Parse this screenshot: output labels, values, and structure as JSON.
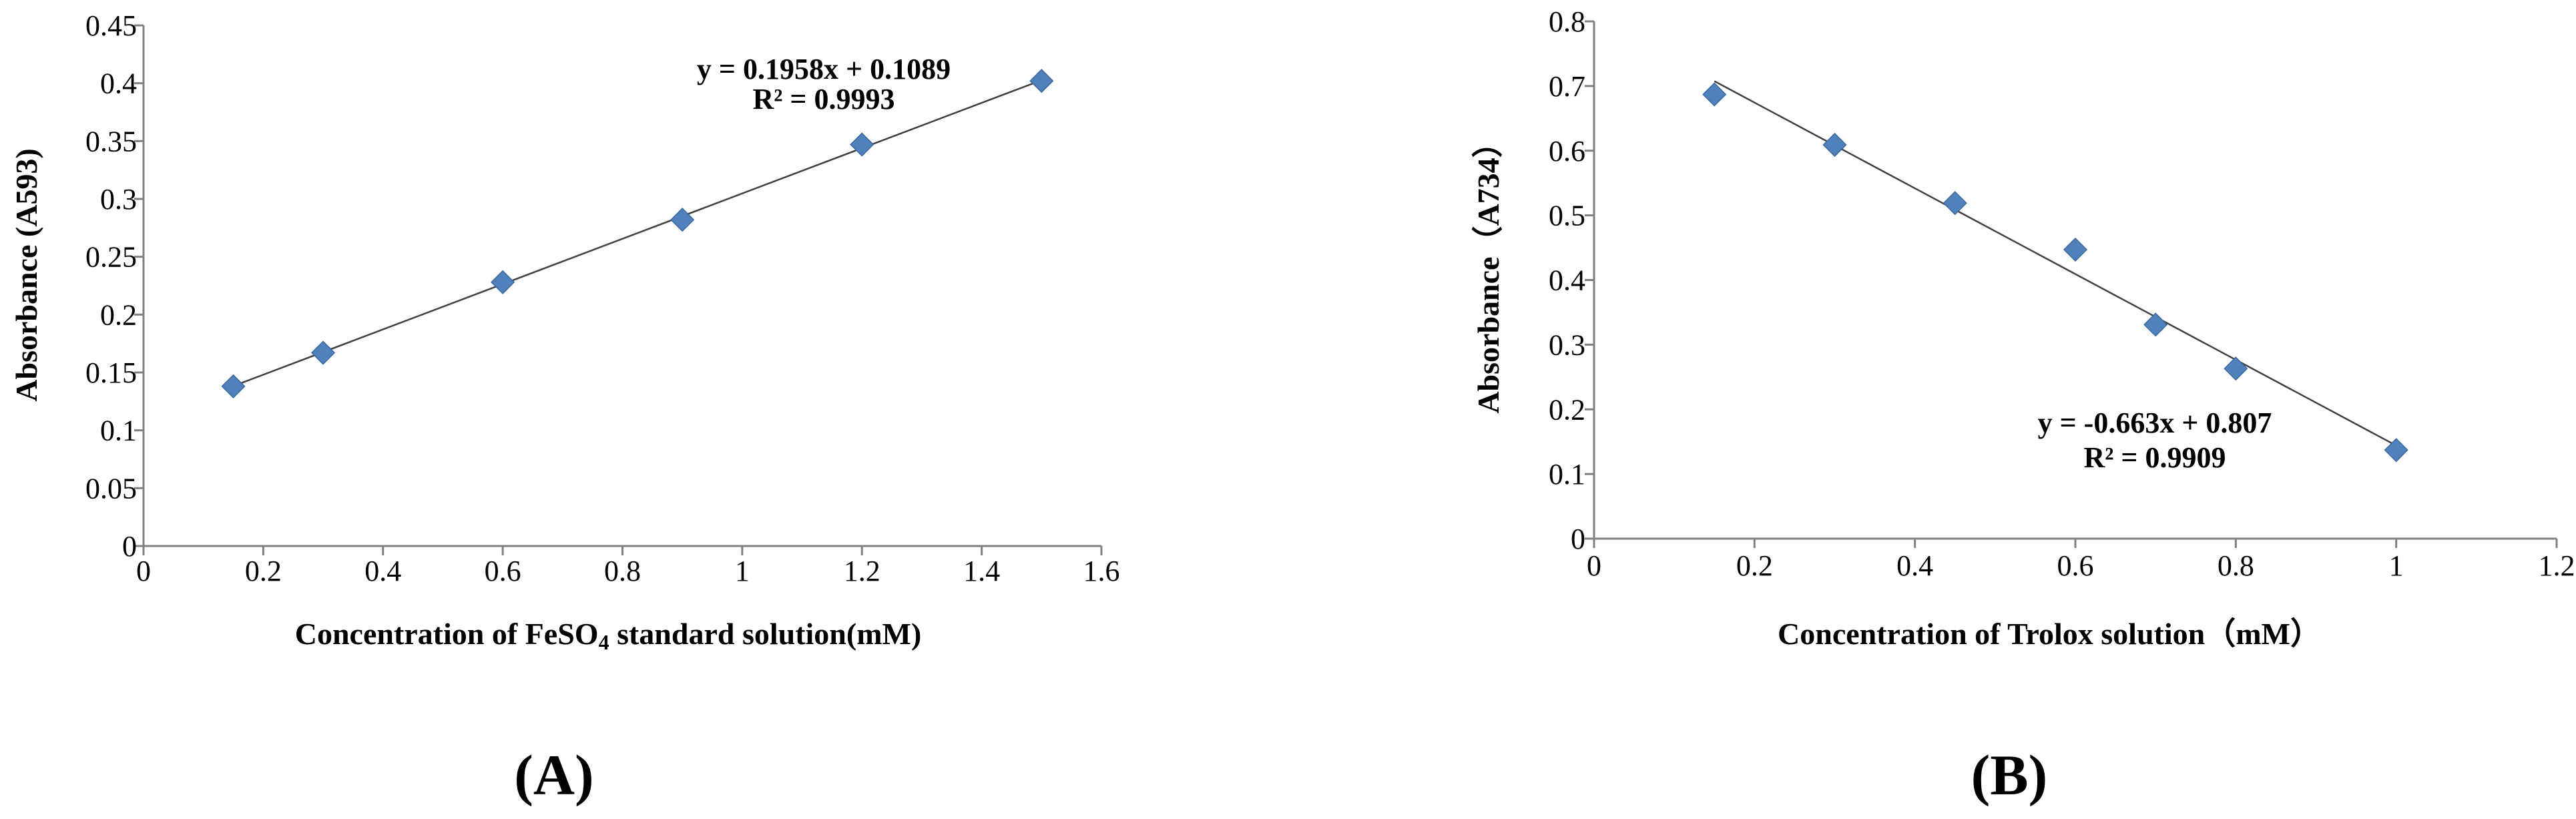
{
  "colors": {
    "marker": "#4F81BD",
    "marker_stroke": "#3A679E",
    "trendline": "#404040",
    "axis": "#808080"
  },
  "chart_data": [
    {
      "type": "scatter",
      "panel_label": "(A)",
      "xlabel_main": "Concentration of FeSO",
      "xlabel_sub": "4",
      "xlabel_tail": " standard solution(mM)",
      "ylabel": "Absorbance (A593)",
      "xlim": [
        0,
        1.6
      ],
      "ylim": [
        0,
        0.45
      ],
      "x_ticks": [
        0,
        0.2,
        0.4,
        0.6,
        0.8,
        1,
        1.2,
        1.4,
        1.6
      ],
      "x_tick_labels": [
        "0",
        "0.2",
        "0.4",
        "0.6",
        "0.8",
        "1",
        "1.2",
        "1.4",
        "1.6"
      ],
      "y_ticks": [
        0,
        0.05,
        0.1,
        0.15,
        0.2,
        0.25,
        0.3,
        0.35,
        0.4,
        0.45
      ],
      "y_tick_labels": [
        "0",
        "0.05",
        "0.1",
        "0.15",
        "0.2",
        "0.25",
        "0.3",
        "0.35",
        "0.4",
        "0.45"
      ],
      "grid": false,
      "x": [
        0.15,
        0.3,
        0.6,
        0.9,
        1.2,
        1.5
      ],
      "y": [
        0.138,
        0.167,
        0.228,
        0.282,
        0.347,
        0.402
      ],
      "trendline": {
        "slope": 0.1958,
        "intercept": 0.1089,
        "x_range": [
          0.15,
          1.5
        ]
      },
      "equation": "y = 0.1958x + 0.1089",
      "r_squared": "R² = 0.9993"
    },
    {
      "type": "scatter",
      "panel_label": "(B)",
      "xlabel_main": "Concentration of Trolox solution（mM）",
      "ylabel": "Absorbance（A734）",
      "xlim": [
        0,
        1.2
      ],
      "ylim": [
        0,
        0.8
      ],
      "x_ticks": [
        0,
        0.2,
        0.4,
        0.6,
        0.8,
        1,
        1.2
      ],
      "x_tick_labels": [
        "0",
        "0.2",
        "0.4",
        "0.6",
        "0.8",
        "1",
        "1.2"
      ],
      "y_ticks": [
        0,
        0.1,
        0.2,
        0.3,
        0.4,
        0.5,
        0.6,
        0.7,
        0.8
      ],
      "y_tick_labels": [
        "0",
        "0.1",
        "0.2",
        "0.3",
        "0.4",
        "0.5",
        "0.6",
        "0.7",
        "0.8"
      ],
      "grid": false,
      "x": [
        0.15,
        0.3,
        0.45,
        0.6,
        0.7,
        0.8,
        1.0
      ],
      "y": [
        0.687,
        0.609,
        0.519,
        0.447,
        0.331,
        0.263,
        0.137
      ],
      "trendline": {
        "slope": -0.663,
        "intercept": 0.807,
        "x_range": [
          0.15,
          1.0
        ]
      },
      "equation": "y = -0.663x + 0.807",
      "r_squared": "R² = 0.9909"
    }
  ]
}
